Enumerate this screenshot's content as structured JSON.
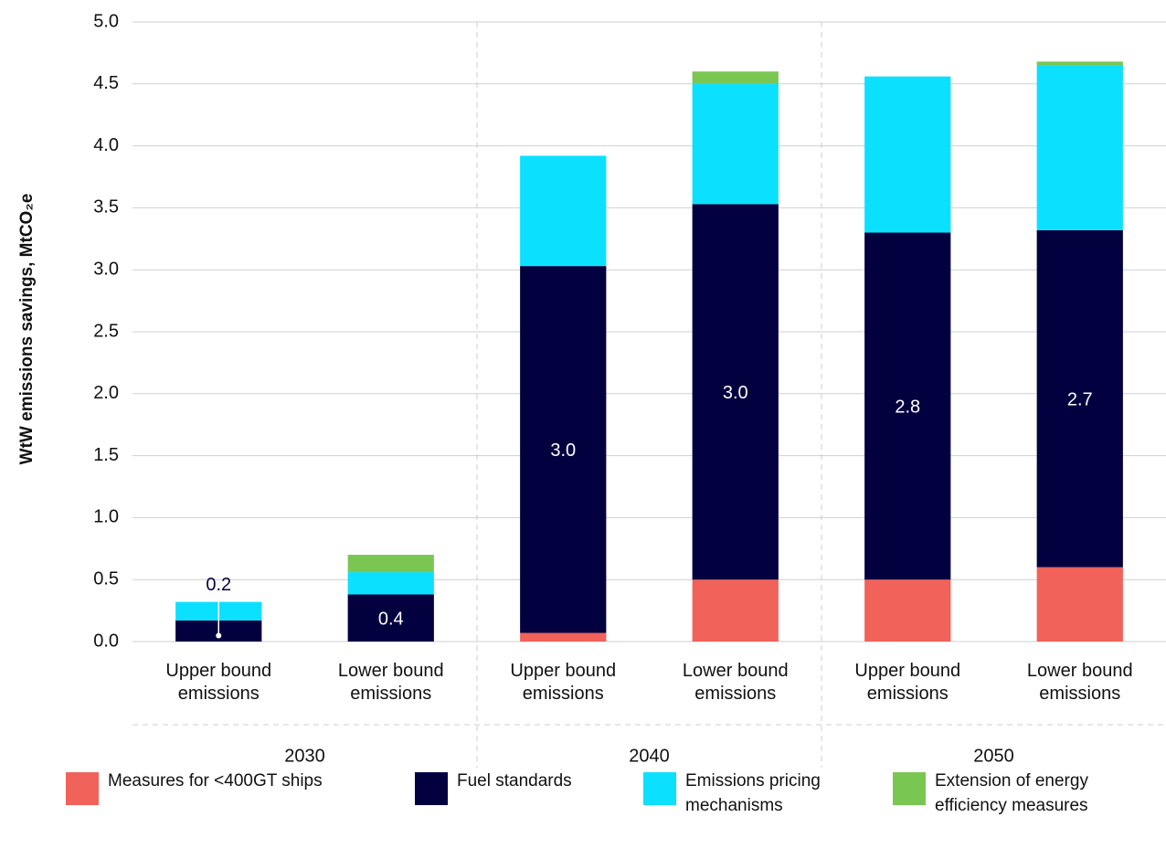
{
  "chart_data": {
    "type": "stacked_bar",
    "y_axis_label": "WtW emissions savings, MtCO₂e",
    "categories": [
      "Upper bound emissions",
      "Lower bound emissions",
      "Upper bound emissions",
      "Lower bound emissions",
      "Upper bound emissions",
      "Lower bound emissions"
    ],
    "groups": [
      "2030",
      "2040",
      "2050"
    ],
    "series": [
      {
        "name": "Measures for <400GT ships",
        "color": "#f0625a",
        "values": [
          0,
          0,
          0.07,
          0.5,
          0.5,
          0.6
        ]
      },
      {
        "name": "Fuel standards",
        "color": "#03003f",
        "values": [
          0.17,
          0.38,
          2.96,
          3.03,
          2.8,
          2.72
        ],
        "value_labels": [
          "0.2",
          "0.4",
          "3.0",
          "3.0",
          "2.8",
          "2.7"
        ]
      },
      {
        "name": "Emissions pricing mechanisms",
        "color": "#0ce0ff",
        "values": [
          0.15,
          0.18,
          0.89,
          0.97,
          1.26,
          1.33
        ]
      },
      {
        "name": "Extension of energy efficiency measures",
        "color": "#7ac653",
        "values": [
          0,
          0.14,
          0,
          0.1,
          0,
          0.03
        ]
      }
    ],
    "ylim": [
      0,
      5
    ],
    "yticks": [
      {
        "value": 0,
        "label": "0.0"
      },
      0.5,
      {
        "value": 1,
        "label": "1.0"
      },
      1.5,
      {
        "value": 2,
        "label": "2.0"
      },
      2.5,
      {
        "value": 3,
        "label": "3.0"
      },
      3.5,
      {
        "value": 4,
        "label": "4.0"
      },
      4.5,
      {
        "value": 5,
        "label": "5.0"
      }
    ],
    "grid": true,
    "legend": "bottom"
  }
}
